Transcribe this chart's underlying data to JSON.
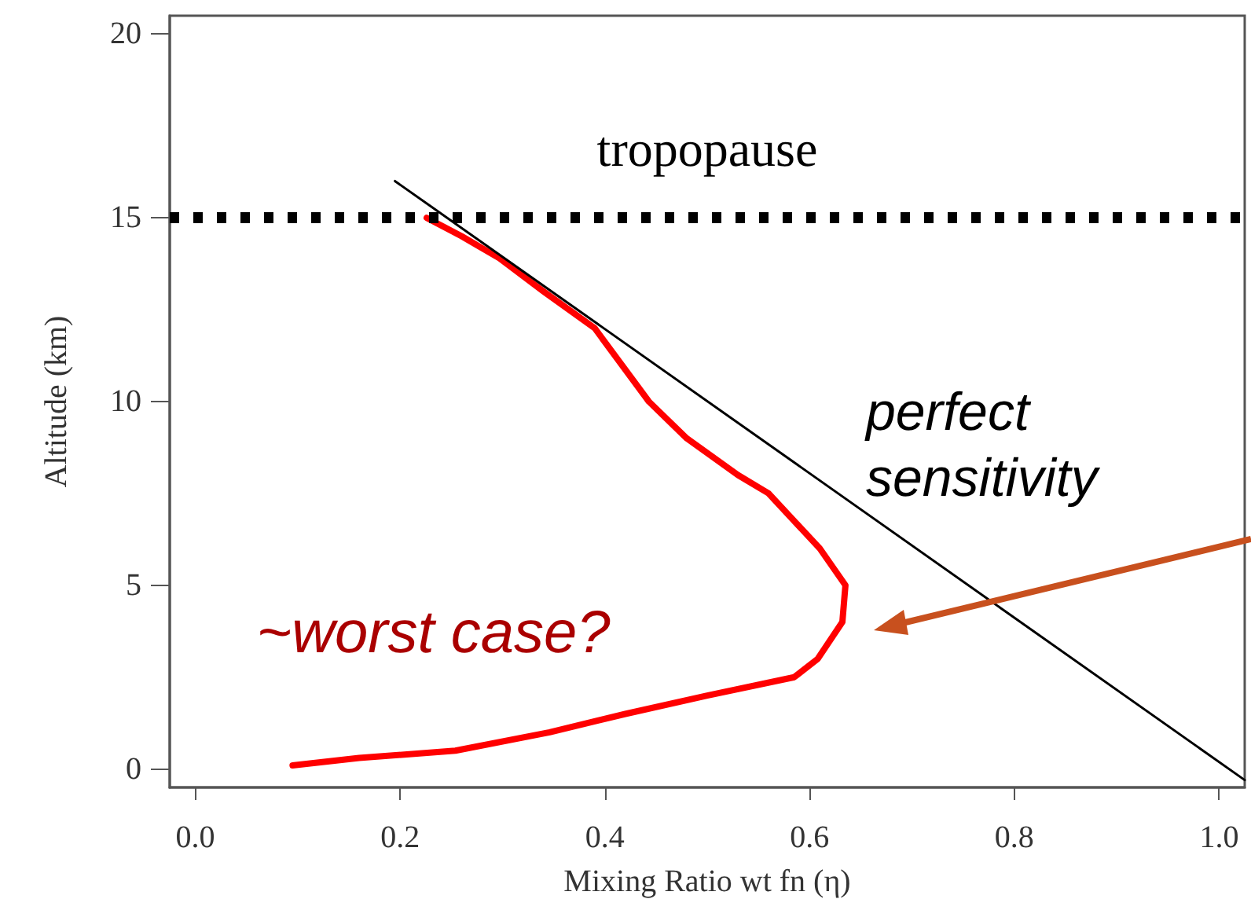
{
  "chart_data": {
    "type": "line",
    "xlabel": "Mixing Ratio wt fn (η)",
    "ylabel": "Altitude (km)",
    "xlim": [
      -0.025,
      1.025
    ],
    "ylim": [
      -0.5,
      20.5
    ],
    "xticks": [
      {
        "value": 0,
        "label": "0.0"
      },
      0.2,
      0.4,
      0.6,
      0.8,
      {
        "value": 1,
        "label": "1.0"
      }
    ],
    "yticks": [
      0,
      5,
      10,
      15,
      20
    ],
    "grid": false,
    "legend": false,
    "marker": "none",
    "series": [
      {
        "name": "perfect sensitivity",
        "color": "#000000",
        "x": [
          0.195,
          1.025
        ],
        "values": [
          16,
          -0.3
        ]
      },
      {
        "name": "~worst case?",
        "color": "#ff0000",
        "x": [
          0.226,
          0.26,
          0.297,
          0.34,
          0.39,
          0.443,
          0.48,
          0.53,
          0.56,
          0.61,
          0.635,
          0.632,
          0.608,
          0.585,
          0.5,
          0.42,
          0.346,
          0.254,
          0.16,
          0.095
        ],
        "values": [
          15,
          14.5,
          13.9,
          13,
          12,
          10,
          9,
          8,
          7.5,
          6,
          5,
          4,
          3,
          2.5,
          2,
          1.5,
          1,
          0.5,
          0.3,
          0.1
        ]
      }
    ],
    "ref_lines": [
      {
        "axis": "y",
        "value": 15,
        "label": "tropopause",
        "color": "#000000",
        "line_style": "dotted"
      }
    ]
  }
}
